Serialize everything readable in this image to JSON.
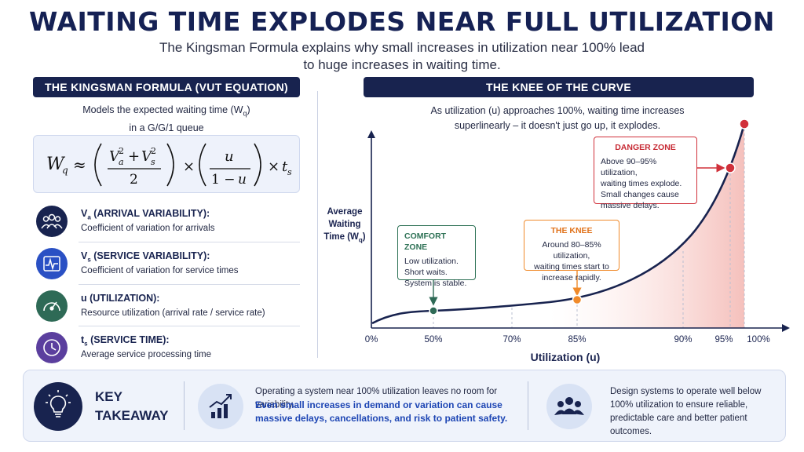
{
  "title": "WAITING TIME EXPLODES NEAR FULL UTILIZATION",
  "subtitle": "The Kingsman Formula explains why small increases in utilization near 100% lead to huge increases in waiting time.",
  "left_panel": {
    "header": "THE KINGSMAN FORMULA (VUT EQUATION)",
    "description_line1": "Models the expected waiting time (W",
    "description_sub": "q",
    "description_line1_end": ")",
    "description_line2": "in a G/G/1 queue",
    "variables": [
      {
        "name": "V",
        "sub": "a",
        "label": " (ARRIVAL VARIABILITY):",
        "desc": "Coefficient of variation for arrivals",
        "icon": "people-group-icon",
        "color": "#18234f"
      },
      {
        "name": "V",
        "sub": "s",
        "label": " (SERVICE VARIABILITY):",
        "desc": "Coefficient of variation for service times",
        "icon": "pulse-icon",
        "color": "#2a50c4"
      },
      {
        "name": "u",
        "sub": "",
        "label": "  (UTILIZATION):",
        "desc": "Resource utilization (arrival rate / service rate)",
        "icon": "gauge-icon",
        "color": "#2e6a56"
      },
      {
        "name": "t",
        "sub": "s",
        "label": "  (SERVICE TIME):",
        "desc": "Average service processing time",
        "icon": "clock-icon",
        "color": "#5b3f9e"
      }
    ]
  },
  "right_panel": {
    "header": "THE KNEE OF THE CURVE",
    "description_line1": "As utilization (u) approaches 100%, waiting time increases",
    "description_line2": "superlinearly – it doesn't just go up, it explodes.",
    "zones": {
      "comfort": {
        "title": "COMFORT ZONE",
        "lines": [
          "Low utilization.",
          "Short waits.",
          "System is stable."
        ]
      },
      "knee": {
        "title": "THE KNEE",
        "lines": [
          "Around 80–85% utilization,",
          "waiting times start to",
          "increase rapidly."
        ]
      },
      "danger": {
        "title": "DANGER ZONE",
        "lines": [
          "Above 90–95% utilization,",
          "waiting times explode.",
          "Small changes cause",
          "massive delays."
        ]
      }
    }
  },
  "chart_data": {
    "type": "line",
    "x_ticks": [
      "0%",
      "50%",
      "70%",
      "85%",
      "90%",
      "95%",
      "100%"
    ],
    "xlabel": "Utilization (u)",
    "ylabel_line1": "Average",
    "ylabel_line2": "Waiting",
    "ylabel_line3": "Time (W",
    "ylabel_sub": "q",
    "ylabel_end": ")",
    "highlighted_points": [
      {
        "x": 50,
        "label": "COMFORT ZONE",
        "color": "#2e6a56"
      },
      {
        "x": 85,
        "label": "THE KNEE",
        "color": "#f08a2a"
      },
      {
        "x": 95,
        "label": "DANGER ZONE",
        "color": "#d0303a"
      },
      {
        "x": 100,
        "label": "",
        "color": "#d0303a"
      }
    ],
    "colors": {
      "curve": "#18234f",
      "danger_fill": "#f3b5b0"
    }
  },
  "takeaway": {
    "label_line1": "KEY",
    "label_line2": "TAKEAWAY",
    "text1": "Operating a system near 100% utilization leaves no room for variability.",
    "text1_emphasis": "Even small increases in demand or variation can cause massive delays, cancellations, and risk to patient safety.",
    "text2": "Design systems to operate well below 100% utilization to ensure reliable, predictable care and better patient outcomes."
  }
}
